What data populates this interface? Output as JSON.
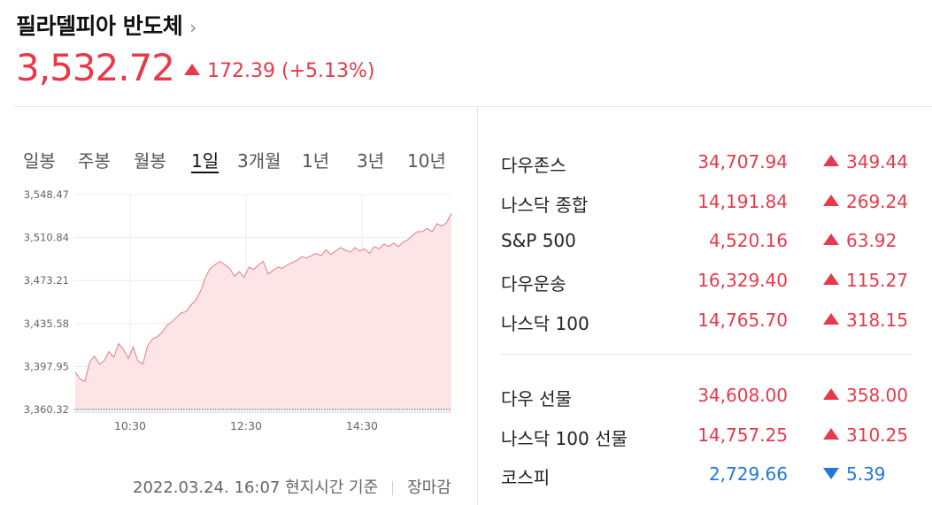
{
  "header": {
    "title": "필라델피아 반도체",
    "chevron": "›",
    "price": "3,532.72",
    "change": "172.39",
    "change_pct": "(+5.13%)",
    "direction": "up"
  },
  "tabs": [
    "일봉",
    "주봉",
    "월봉",
    "1일",
    "3개월",
    "1년",
    "3년",
    "10년"
  ],
  "active_tab": "1일",
  "chart_data": {
    "type": "area",
    "y_ticks": [
      "3,548.47",
      "3,510.84",
      "3,473.21",
      "3,435.58",
      "3,397.95",
      "3,360.32"
    ],
    "x_ticks": [
      "10:30",
      "12:30",
      "14:30"
    ],
    "ylim": [
      3360.32,
      3548.47
    ],
    "baseline": 3360.32,
    "x": [
      "09:30",
      "09:35",
      "09:40",
      "09:45",
      "09:50",
      "09:55",
      "10:00",
      "10:05",
      "10:10",
      "10:15",
      "10:20",
      "10:25",
      "10:30",
      "10:35",
      "10:40",
      "10:45",
      "10:50",
      "10:55",
      "11:00",
      "11:05",
      "11:10",
      "11:15",
      "11:20",
      "11:25",
      "11:30",
      "11:35",
      "11:40",
      "11:45",
      "11:50",
      "11:55",
      "12:00",
      "12:05",
      "12:10",
      "12:15",
      "12:20",
      "12:25",
      "12:30",
      "12:35",
      "12:40",
      "12:45",
      "12:50",
      "12:55",
      "13:00",
      "13:05",
      "13:10",
      "13:15",
      "13:20",
      "13:25",
      "13:30",
      "13:35",
      "13:40",
      "13:45",
      "13:50",
      "13:55",
      "14:00",
      "14:05",
      "14:10",
      "14:15",
      "14:20",
      "14:25",
      "14:30",
      "14:35",
      "14:40",
      "14:45",
      "14:50",
      "14:55",
      "15:00",
      "15:05",
      "15:10",
      "15:15",
      "15:20",
      "15:25",
      "15:30",
      "15:35",
      "15:40",
      "15:45",
      "15:50",
      "15:55",
      "16:00"
    ],
    "values": [
      3393,
      3387,
      3385,
      3402,
      3407,
      3400,
      3403,
      3411,
      3406,
      3418,
      3413,
      3405,
      3415,
      3403,
      3400,
      3416,
      3422,
      3424,
      3428,
      3434,
      3437,
      3441,
      3445,
      3446,
      3452,
      3456,
      3464,
      3476,
      3484,
      3487,
      3490,
      3487,
      3484,
      3477,
      3481,
      3476,
      3485,
      3483,
      3487,
      3490,
      3479,
      3482,
      3485,
      3484,
      3487,
      3489,
      3491,
      3494,
      3493,
      3495,
      3497,
      3495,
      3500,
      3496,
      3499,
      3502,
      3500,
      3498,
      3502,
      3499,
      3501,
      3497,
      3503,
      3501,
      3505,
      3503,
      3506,
      3503,
      3507,
      3509,
      3513,
      3516,
      3516,
      3519,
      3516,
      3523,
      3521,
      3524,
      3532
    ]
  },
  "market_time": "2022.03.24. 16:07 현지시간 기준",
  "market_status": "장마감",
  "indices": [
    {
      "name": "다우존스",
      "value": "34,707.94",
      "change": "349.44",
      "dir": "up"
    },
    {
      "name": "나스닥 종합",
      "value": "14,191.84",
      "change": "269.24",
      "dir": "up"
    },
    {
      "name": "S&P 500",
      "value": "4,520.16",
      "change": "63.92",
      "dir": "up"
    },
    {
      "name": "다우운송",
      "value": "16,329.40",
      "change": "115.27",
      "dir": "up"
    },
    {
      "name": "나스닥 100",
      "value": "14,765.70",
      "change": "318.15",
      "dir": "up"
    }
  ],
  "futures": [
    {
      "name": "다우 선물",
      "value": "34,608.00",
      "change": "358.00",
      "dir": "up"
    },
    {
      "name": "나스닥 100 선물",
      "value": "14,757.25",
      "change": "310.25",
      "dir": "up"
    },
    {
      "name": "코스피",
      "value": "2,729.66",
      "change": "5.39",
      "dir": "down"
    }
  ],
  "colors": {
    "up": "#e8394a",
    "down": "#1f78d6",
    "area_fill": "#fde4e6"
  }
}
